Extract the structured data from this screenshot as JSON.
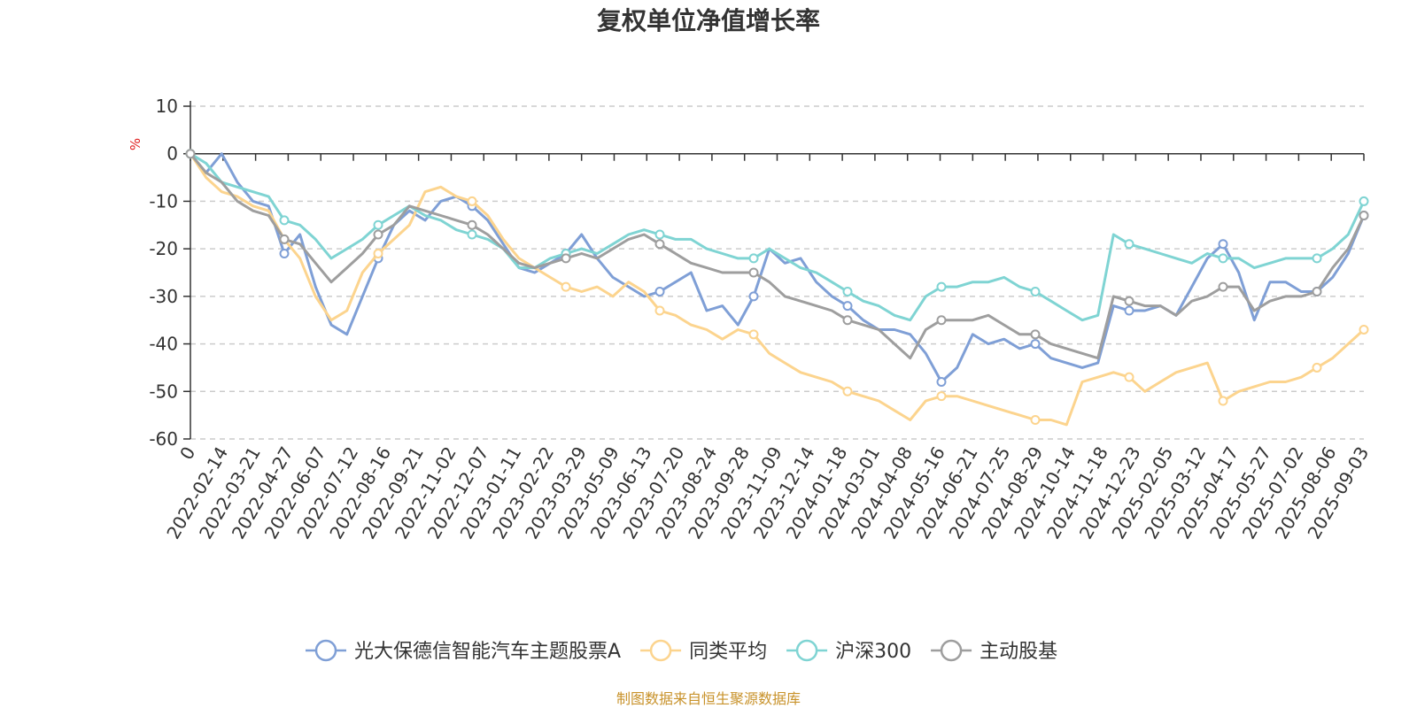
{
  "chart_data": {
    "type": "line",
    "title": "复权单位净值增长率",
    "y_unit": "%",
    "ylim": [
      -60,
      10
    ],
    "y_ticks": [
      10,
      0,
      -10,
      -20,
      -30,
      -40,
      -50,
      -60
    ],
    "x_tick_labels": [
      "0",
      "2022-02-14",
      "2022-03-21",
      "2022-04-27",
      "2022-06-07",
      "2022-07-12",
      "2022-08-16",
      "2022-09-21",
      "2022-11-02",
      "2022-12-07",
      "2023-01-11",
      "2023-02-22",
      "2023-03-29",
      "2023-05-09",
      "2023-06-13",
      "2023-07-20",
      "2023-08-24",
      "2023-09-28",
      "2023-11-09",
      "2023-12-14",
      "2024-01-18",
      "2024-03-01",
      "2024-04-08",
      "2024-05-16",
      "2024-06-21",
      "2024-07-25",
      "2024-08-29",
      "2024-10-14",
      "2024-11-18",
      "2024-12-23",
      "2025-02-05",
      "2025-03-12",
      "2025-04-17",
      "2025-05-27",
      "2025-07-02",
      "2025-08-06",
      "2025-09-03"
    ],
    "grid": "horizontal dashed",
    "legend_position": "bottom",
    "series": [
      {
        "name": "光大保德信智能汽车主题股票A",
        "color": "#7f9fd6",
        "values": [
          0,
          -4,
          0,
          -6,
          -10,
          -11,
          -21,
          -17,
          -28,
          -36,
          -38,
          -30,
          -22,
          -15,
          -12,
          -14,
          -10,
          -9,
          -11,
          -14,
          -19,
          -24,
          -25,
          -23,
          -21,
          -17,
          -22,
          -26,
          -28,
          -30,
          -29,
          -27,
          -25,
          -33,
          -32,
          -36,
          -30,
          -20,
          -23,
          -22,
          -27,
          -30,
          -32,
          -35,
          -37,
          -37,
          -38,
          -42,
          -48,
          -45,
          -38,
          -40,
          -39,
          -41,
          -40,
          -43,
          -44,
          -45,
          -44,
          -32,
          -33,
          -33,
          -32,
          -34,
          -28,
          -22,
          -19,
          -25,
          -35,
          -27,
          -27,
          -29,
          -29,
          -26,
          -21,
          -13
        ]
      },
      {
        "name": "同类平均",
        "color": "#fcd48e",
        "values": [
          0,
          -5,
          -8,
          -9,
          -11,
          -12,
          -18,
          -22,
          -30,
          -35,
          -33,
          -25,
          -21,
          -18,
          -15,
          -8,
          -7,
          -9,
          -10,
          -13,
          -18,
          -22,
          -24,
          -26,
          -28,
          -29,
          -28,
          -30,
          -27,
          -29,
          -33,
          -34,
          -36,
          -37,
          -39,
          -37,
          -38,
          -42,
          -44,
          -46,
          -47,
          -48,
          -50,
          -51,
          -52,
          -54,
          -56,
          -52,
          -51,
          -51,
          -52,
          -53,
          -54,
          -55,
          -56,
          -56,
          -57,
          -48,
          -47,
          -46,
          -47,
          -50,
          -48,
          -46,
          -45,
          -44,
          -52,
          -50,
          -49,
          -48,
          -48,
          -47,
          -45,
          -43,
          -40,
          -37
        ]
      },
      {
        "name": "沪深300",
        "color": "#7fd4d3",
        "values": [
          0,
          -2,
          -6,
          -7,
          -8,
          -9,
          -14,
          -15,
          -18,
          -22,
          -20,
          -18,
          -15,
          -13,
          -11,
          -13,
          -14,
          -16,
          -17,
          -18,
          -20,
          -24,
          -24,
          -22,
          -21,
          -20,
          -21,
          -19,
          -17,
          -16,
          -17,
          -18,
          -18,
          -20,
          -21,
          -22,
          -22,
          -20,
          -22,
          -24,
          -25,
          -27,
          -29,
          -31,
          -32,
          -34,
          -35,
          -30,
          -28,
          -28,
          -27,
          -27,
          -26,
          -28,
          -29,
          -31,
          -33,
          -35,
          -34,
          -17,
          -19,
          -20,
          -21,
          -22,
          -23,
          -21,
          -22,
          -22,
          -24,
          -23,
          -22,
          -22,
          -22,
          -20,
          -17,
          -10
        ]
      },
      {
        "name": "主动股基",
        "color": "#9e9e9e",
        "values": [
          0,
          -4,
          -6,
          -10,
          -12,
          -13,
          -18,
          -19,
          -23,
          -27,
          -24,
          -21,
          -17,
          -15,
          -11,
          -12,
          -13,
          -14,
          -15,
          -17,
          -20,
          -23,
          -24,
          -23,
          -22,
          -21,
          -22,
          -20,
          -18,
          -17,
          -19,
          -21,
          -23,
          -24,
          -25,
          -25,
          -25,
          -27,
          -30,
          -31,
          -32,
          -33,
          -35,
          -36,
          -37,
          -40,
          -43,
          -37,
          -35,
          -35,
          -35,
          -34,
          -36,
          -38,
          -38,
          -40,
          -41,
          -42,
          -43,
          -30,
          -31,
          -32,
          -32,
          -34,
          -31,
          -30,
          -28,
          -28,
          -33,
          -31,
          -30,
          -30,
          -29,
          -24,
          -20,
          -13
        ]
      }
    ]
  },
  "source_text": "制图数据来自恒生聚源数据库",
  "colors": {
    "source": "#c8922a",
    "unit": "#e02020",
    "axis": "#333333",
    "grid": "#cccccc"
  }
}
